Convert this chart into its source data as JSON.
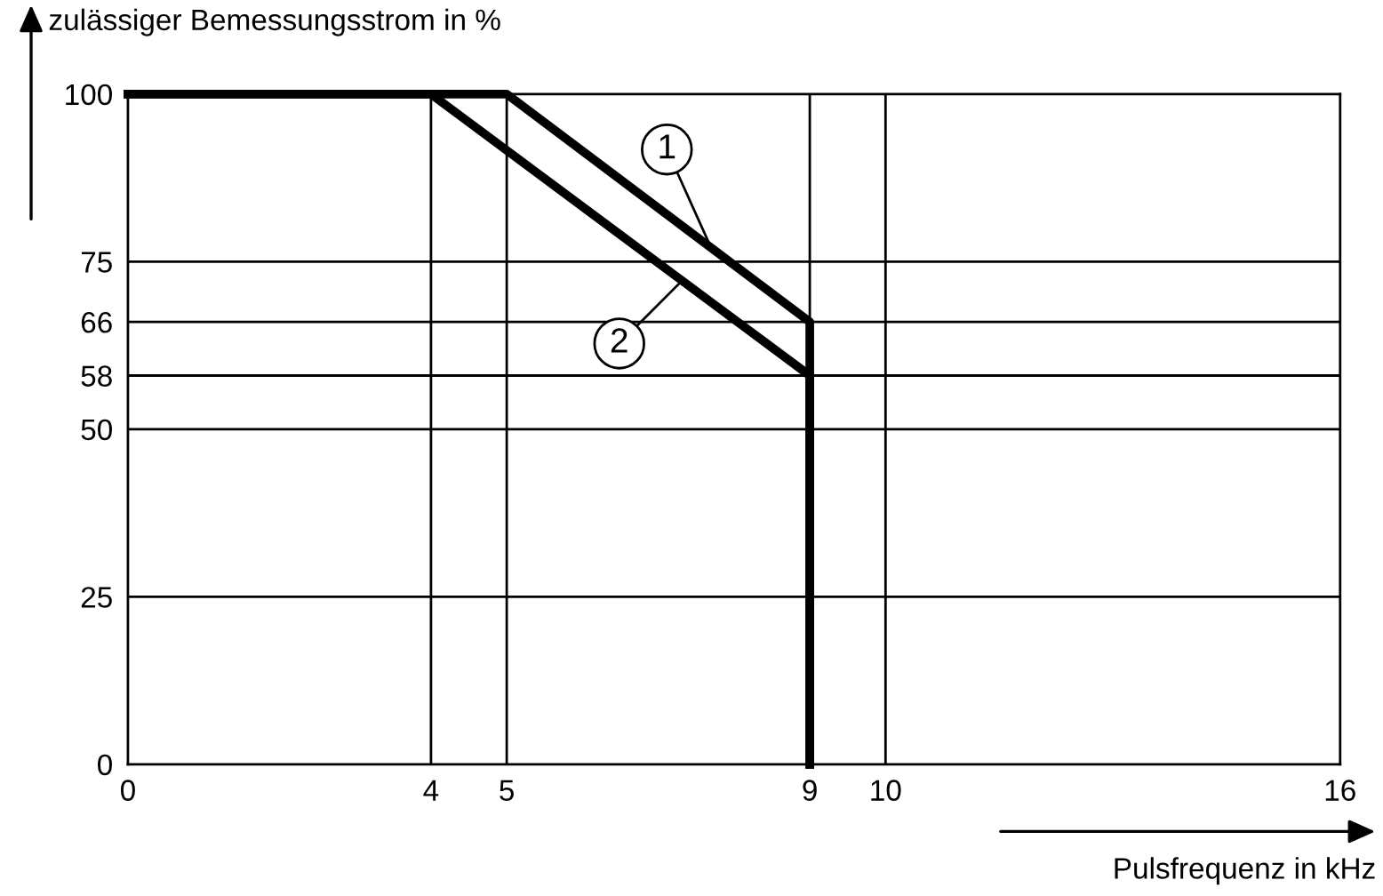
{
  "chart_data": {
    "type": "line",
    "xlabel": "Pulsfrequenz in kHz",
    "ylabel": "zulässiger Bemessungsstrom in %",
    "series": [
      {
        "color": "#000000",
        "x": [
          0,
          5,
          9,
          9
        ],
        "values": [
          100,
          100,
          66,
          0
        ]
      },
      {
        "color": "#000000",
        "x": [
          0,
          4,
          9,
          9
        ],
        "values": [
          100,
          100,
          58,
          0
        ]
      }
    ],
    "annotations": [
      {
        "text": "1",
        "x": 7.7,
        "y": 77
      },
      {
        "text": "2",
        "x": 7.3,
        "y": 72
      }
    ],
    "xlim": [
      0,
      16
    ],
    "xticks": [
      0,
      4,
      5,
      9,
      10,
      16
    ],
    "ylim": [
      0,
      100
    ],
    "yticks": [
      0,
      25,
      50,
      58,
      66,
      75,
      100
    ],
    "grid": true,
    "marker": "none",
    "line_style": "solid"
  }
}
